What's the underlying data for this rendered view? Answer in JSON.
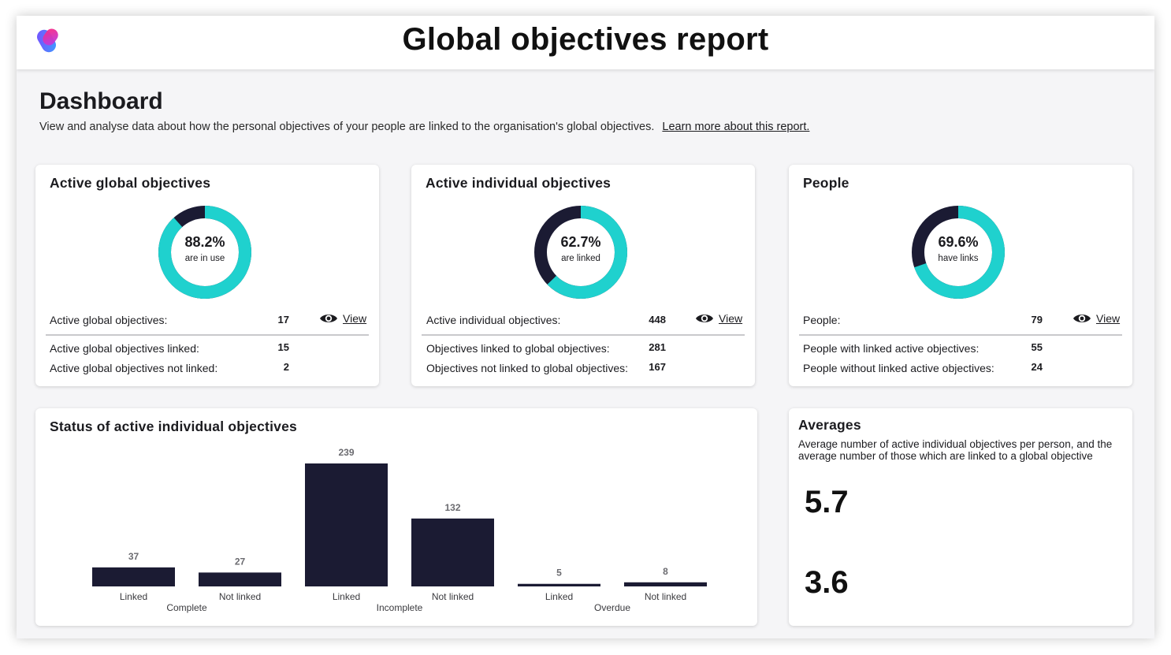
{
  "header": {
    "title": "Global objectives report"
  },
  "dashboard": {
    "title": "Dashboard",
    "description": "View and analyse data about how the personal objectives of your people are linked to the organisation's global objectives.",
    "learn_more": "Learn more about this report."
  },
  "colors": {
    "primary": "#1b1b33",
    "accent": "#1fd1ce",
    "divider": "#c9c9cc"
  },
  "cards": [
    {
      "title": "Active global objectives",
      "percent_value": 88.2,
      "percent_label": "88.2%",
      "caption": "are in use",
      "total_label": "Active global objectives:",
      "total_value": "17",
      "view_label": "View",
      "rows": [
        {
          "label": "Active global objectives linked:",
          "value": "15"
        },
        {
          "label": "Active global objectives not linked:",
          "value": "2"
        }
      ]
    },
    {
      "title": "Active individual objectives",
      "percent_value": 62.7,
      "percent_label": "62.7%",
      "caption": "are linked",
      "total_label": "Active individual objectives:",
      "total_value": "448",
      "view_label": "View",
      "rows": [
        {
          "label": "Objectives linked to global objectives:",
          "value": "281"
        },
        {
          "label": "Objectives not linked to global objectives:",
          "value": "167"
        }
      ]
    },
    {
      "title": "People",
      "percent_value": 69.6,
      "percent_label": "69.6%",
      "caption": "have links",
      "total_label": "People:",
      "total_value": "79",
      "view_label": "View",
      "rows": [
        {
          "label": "People with linked active objectives:",
          "value": "55"
        },
        {
          "label": "People without linked active objectives:",
          "value": "24"
        }
      ]
    }
  ],
  "status_chart": {
    "title": "Status of active individual objectives"
  },
  "chart_data": {
    "type": "bar",
    "groups": [
      {
        "name": "Complete",
        "bars": [
          {
            "label": "Linked",
            "value": 37
          },
          {
            "label": "Not linked",
            "value": 27
          }
        ]
      },
      {
        "name": "Incomplete",
        "bars": [
          {
            "label": "Linked",
            "value": 239
          },
          {
            "label": "Not linked",
            "value": 132
          }
        ]
      },
      {
        "name": "Overdue",
        "bars": [
          {
            "label": "Linked",
            "value": 5
          },
          {
            "label": "Not linked",
            "value": 8
          }
        ]
      }
    ],
    "ylim": [
      0,
      239
    ],
    "grid": false,
    "legend": "none"
  },
  "averages": {
    "title": "Averages",
    "description": "Average number of active individual objectives per person, and the average number of those which are linked to a global objective",
    "value_1": "5.7",
    "value_2": "3.6"
  },
  "icons": {
    "logo": "brand-logo-icon",
    "view": "eye-icon"
  }
}
